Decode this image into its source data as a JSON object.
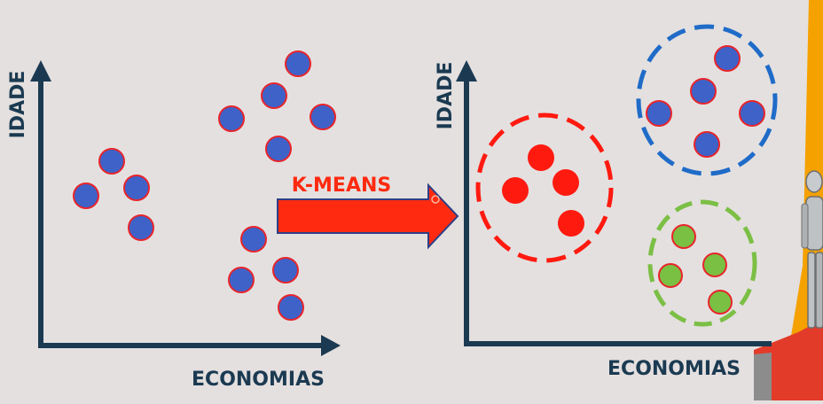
{
  "left_plot": {
    "y_axis_label": "IDADE",
    "x_axis_label": "ECONOMIAS",
    "point_color": "#3f62c8",
    "point_outline": "#e8242a"
  },
  "arrow": {
    "label": "K-MEANS",
    "color": "#ff2a10",
    "label_color": "#ff2a10"
  },
  "right_plot": {
    "y_axis_label": "IDADE",
    "x_axis_label": "ECONOMIAS",
    "clusters": [
      {
        "name": "red-cluster",
        "fill": "#ff1a10",
        "ring": "#ff1a10"
      },
      {
        "name": "blue-cluster",
        "fill": "#3f62c8",
        "ring": "#1f6bc8"
      },
      {
        "name": "green-cluster",
        "fill": "#79c043",
        "ring": "#7bbf45"
      }
    ]
  },
  "colors": {
    "axis": "#1b3a52",
    "label": "#1b3a52",
    "background": "#e4e0df",
    "decor_orange": "#f5a100"
  }
}
